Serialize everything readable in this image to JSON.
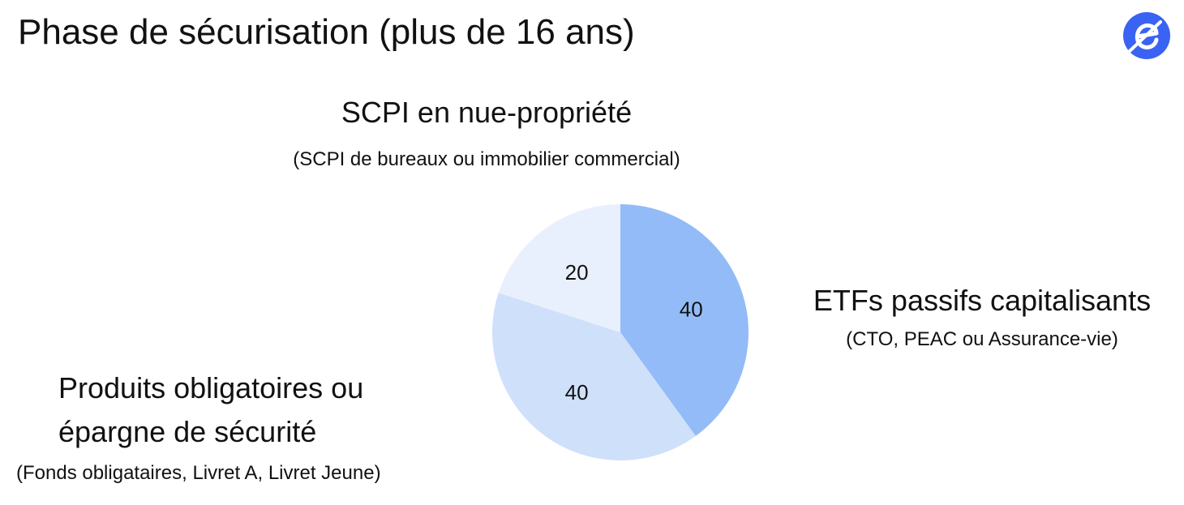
{
  "title": "Phase de sécurisation (plus de 16 ans)",
  "logo": {
    "icon": "e-brand-logo-icon",
    "color": "#3a63f3"
  },
  "chart_data": {
    "type": "pie",
    "start_angle_deg": 0,
    "direction": "clockwise",
    "slices": [
      {
        "label": "ETFs passifs capitalisants",
        "sublabel": "(CTO, PEAC ou Assurance-vie)",
        "value": 40,
        "color": "#93bbf7"
      },
      {
        "label": "Produits obligatoires ou épargne de sécurité",
        "sublabel": "(Fonds obligataires, Livret A, Livret Jeune)",
        "value": 40,
        "color": "#cfe0fb"
      },
      {
        "label": "SCPI en nue-propriété",
        "sublabel": "(SCPI de bureaux ou immobilier commercial)",
        "value": 20,
        "color": "#e9f0fd"
      }
    ]
  }
}
